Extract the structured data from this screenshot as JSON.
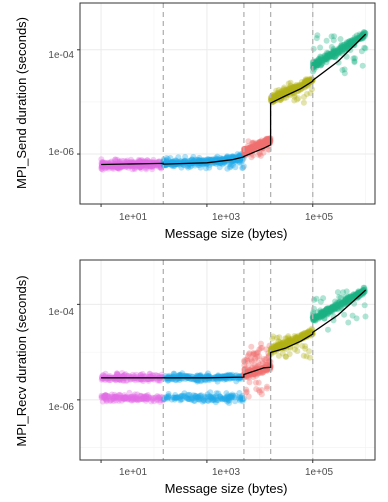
{
  "chart_data": [
    {
      "type": "scatter",
      "title": "",
      "xlabel": "Message size (bytes)",
      "ylabel": "MPI_Send duration (seconds)",
      "x_scale": "log10",
      "y_scale": "log10",
      "xlim": [
        4,
        1500000
      ],
      "ylim": [
        1.1e-07,
        0.00079
      ],
      "x_ticks": [
        10,
        1000,
        100000
      ],
      "x_tick_labels": [
        "1e+01",
        "1e+03",
        "1e+05"
      ],
      "y_ticks": [
        1e-06,
        0.0001
      ],
      "y_tick_labels": [
        "1e-06",
        "1e-04"
      ],
      "breakpoints": [
        150,
        5000,
        16000,
        100000
      ],
      "grid": true,
      "legend": "none",
      "series": [
        {
          "color": "#e36ee6",
          "x_range": [
            10,
            150
          ],
          "main_y": 6.3e-07,
          "spread": [
            5e-07,
            8e-07
          ]
        },
        {
          "color": "#20a9e8",
          "x_range": [
            150,
            5000
          ],
          "main_y": 6.5e-07,
          "spread": [
            5.2e-07,
            9e-07
          ]
        },
        {
          "color": "#f07170",
          "x_range": [
            5000,
            16000
          ],
          "main_y": 1.1e-06,
          "spread": [
            8.5e-07,
            1.9e-06
          ]
        },
        {
          "color": "#b3b216",
          "x_range": [
            16000,
            100000
          ],
          "main_y": 1.1e-05,
          "spread": [
            9.5e-06,
            2.4e-05
          ]
        },
        {
          "color": "#1cb383",
          "x_range": [
            100000,
            1000000
          ],
          "main_y": 5e-05,
          "spread": [
            3.3e-05,
            0.00019
          ]
        }
      ],
      "fit_line": [
        [
          10,
          6.3e-07
        ],
        [
          150,
          6.6e-07
        ],
        [
          150,
          6.4e-07
        ],
        [
          1000,
          6.8e-07
        ],
        [
          3000,
          7.8e-07
        ],
        [
          5000,
          8.8e-07
        ],
        [
          5000,
          9e-07
        ],
        [
          12000,
          1.3e-06
        ],
        [
          16000,
          1.5e-06
        ],
        [
          16000,
          9.5e-06
        ],
        [
          30000,
          1.3e-05
        ],
        [
          60000,
          1.8e-05
        ],
        [
          100000,
          2.5e-05
        ],
        [
          100000,
          2.6e-05
        ],
        [
          300000,
          6e-05
        ],
        [
          1000000,
          0.0002
        ]
      ]
    },
    {
      "type": "scatter",
      "title": "",
      "xlabel": "Message size (bytes)",
      "ylabel": "MPI_Recv duration (seconds)",
      "x_scale": "log10",
      "y_scale": "log10",
      "xlim": [
        4,
        1500000
      ],
      "ylim": [
        5.5e-08,
        0.00085
      ],
      "x_ticks": [
        10,
        1000,
        100000
      ],
      "x_tick_labels": [
        "1e+01",
        "1e+03",
        "1e+05"
      ],
      "y_ticks": [
        1e-06,
        0.0001
      ],
      "y_tick_labels": [
        "1e-06",
        "1e-04"
      ],
      "breakpoints": [
        150,
        5000,
        16000,
        100000
      ],
      "grid": true,
      "legend": "none",
      "series": [
        {
          "color": "#e36ee6",
          "x_range": [
            10,
            150
          ],
          "main_y": 2.9e-06,
          "spread": [
            1.1e-06,
            3e-06
          ]
        },
        {
          "color": "#20a9e8",
          "x_range": [
            150,
            5000
          ],
          "main_y": 2.9e-06,
          "spread": [
            1.1e-06,
            3.2e-06
          ]
        },
        {
          "color": "#f07170",
          "x_range": [
            5000,
            16000
          ],
          "main_y": 3.4e-06,
          "spread": [
            1.1e-06,
            1.3e-05
          ]
        },
        {
          "color": "#b3b216",
          "x_range": [
            16000,
            100000
          ],
          "main_y": 1.1e-05,
          "spread": [
            7.5e-06,
            2.2e-05
          ]
        },
        {
          "color": "#1cb383",
          "x_range": [
            100000,
            1000000
          ],
          "main_y": 5e-05,
          "spread": [
            2.8e-05,
            0.00019
          ]
        }
      ],
      "fit_line": [
        [
          10,
          2.9e-06
        ],
        [
          150,
          2.9e-06
        ],
        [
          150,
          2.9e-06
        ],
        [
          1000,
          2.9e-06
        ],
        [
          5000,
          3e-06
        ],
        [
          5000,
          3.4e-06
        ],
        [
          12000,
          4.7e-06
        ],
        [
          16000,
          4.8e-06
        ],
        [
          16000,
          9.8e-06
        ],
        [
          30000,
          1.2e-05
        ],
        [
          60000,
          1.7e-05
        ],
        [
          100000,
          2.4e-05
        ],
        [
          100000,
          2.6e-05
        ],
        [
          300000,
          6e-05
        ],
        [
          1000000,
          0.0002
        ]
      ]
    }
  ]
}
